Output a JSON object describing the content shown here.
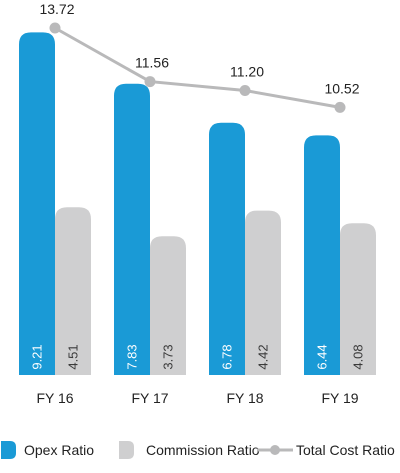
{
  "chart_data": {
    "type": "bar",
    "categories": [
      "FY 16",
      "FY 17",
      "FY 18",
      "FY 19"
    ],
    "series": [
      {
        "name": "Opex Ratio",
        "type": "bar",
        "color": "#1a9ad6",
        "values": [
          9.21,
          7.83,
          6.78,
          6.44
        ]
      },
      {
        "name": "Commission Ratio",
        "type": "bar",
        "color": "#cfcfd0",
        "values": [
          4.51,
          3.73,
          4.42,
          4.08
        ]
      },
      {
        "name": "Total Cost Ratio",
        "type": "line",
        "color": "#b9b9ba",
        "values": [
          13.72,
          11.56,
          11.2,
          10.52
        ]
      }
    ],
    "ylim": [
      0,
      13.72
    ],
    "grid": false,
    "legend": "bottom"
  }
}
